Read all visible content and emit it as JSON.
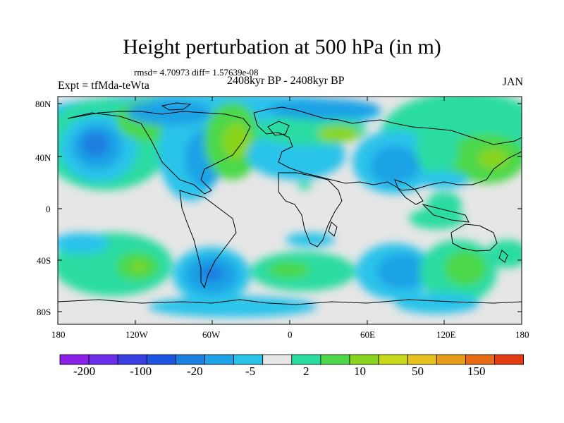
{
  "title": "Height perturbation at 500 hPa (in m)",
  "stats_text": "rmsd= 4.70973 diff= 1.57639e-08",
  "period_text": "2408kyr BP - 2408kyr BP",
  "expt_label": "Expt = tfMda-teWta",
  "month": "JAN",
  "lat_ticks": [
    "80N",
    "40N",
    "0",
    "40S",
    "80S"
  ],
  "lon_ticks": [
    "180",
    "120W",
    "60W",
    "0",
    "60E",
    "120E",
    "180"
  ],
  "colorbar": {
    "colors": [
      "#8a1fe6",
      "#6a2ee8",
      "#3a3ddf",
      "#1d55e0",
      "#1a7fe0",
      "#1ea2e6",
      "#29c3ea",
      "#e6e6e6",
      "#2bdca2",
      "#4cd84a",
      "#8ad41f",
      "#c8d81b",
      "#e6c01c",
      "#e89b18",
      "#e66b14",
      "#e43a12"
    ],
    "labels": [
      "-200",
      "-100",
      "-20",
      "-5",
      "2",
      "10",
      "50",
      "150"
    ]
  }
}
